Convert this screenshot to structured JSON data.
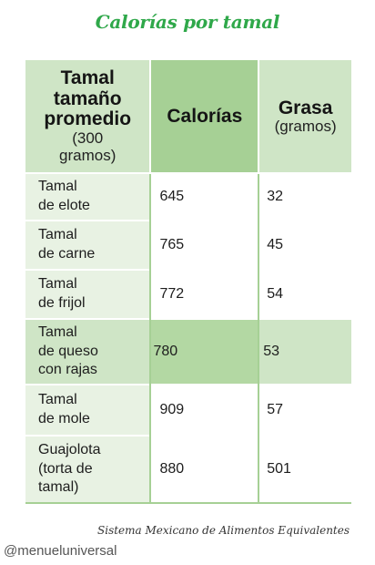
{
  "title": "Calorías por tamal",
  "header": {
    "col1_line1": "Tamal",
    "col1_line2": "tamaño",
    "col1_line3": "promedio",
    "col1_sub1": "(300",
    "col1_sub2": "gramos)",
    "col2": "Calorías",
    "col3": "Grasa",
    "col3_sub": "(gramos)"
  },
  "rows": [
    {
      "name_lines": [
        "Tamal",
        "de elote"
      ],
      "calorias": "645",
      "grasa": "32"
    },
    {
      "name_lines": [
        "Tamal",
        "de carne"
      ],
      "calorias": "765",
      "grasa": "45"
    },
    {
      "name_lines": [
        "Tamal",
        "de frijol"
      ],
      "calorias": "772",
      "grasa": "54"
    },
    {
      "name_lines": [
        "Tamal",
        "de queso",
        "con rajas"
      ],
      "calorias": "780",
      "grasa": "53"
    },
    {
      "name_lines": [
        "Tamal",
        "de mole"
      ],
      "calorias": "909",
      "grasa": "57"
    },
    {
      "name_lines": [
        "Guajolota",
        "(torta de",
        "tamal)"
      ],
      "calorias": "880",
      "grasa": "501"
    }
  ],
  "source": "Sistema Mexicano de Alimentos Equivalentes",
  "watermark": "@menueluniversal",
  "colors": {
    "title_green": "#2fa84a",
    "header_dark_green": "#a6d095",
    "header_light_green": "#cfe5c6",
    "row_light_green": "#e8f2e3"
  }
}
